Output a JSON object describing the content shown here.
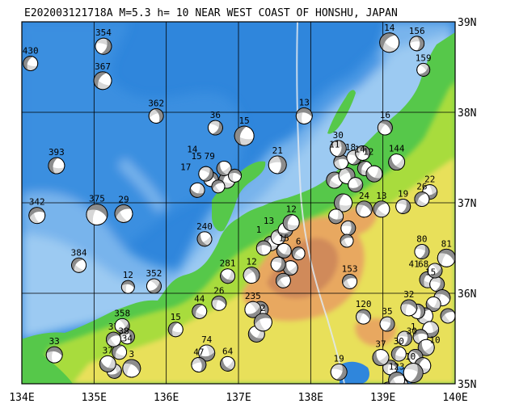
{
  "title": "E202003121718A M=5.3 h= 10 NEAR WEST COAST OF HONSHU, JAPAN",
  "colors": {
    "deep_sea": "#2f86dc",
    "mid_sea": "#4a98e4",
    "shallow_sea": "#78b4ec",
    "shelf": "#9ccaf2",
    "lowland": "#56c84a",
    "plain": "#a8dc3c",
    "hill": "#e8e05a",
    "mountain": "#e8a860",
    "high_mountain": "#d08a5a",
    "grid": "#000000",
    "compressional": "#8c8c8c",
    "dilatational": "#ffffff"
  },
  "x_ticks": [
    {
      "label": "134E",
      "value": 134
    },
    {
      "label": "135E",
      "value": 135
    },
    {
      "label": "136E",
      "value": 136
    },
    {
      "label": "137E",
      "value": 137
    },
    {
      "label": "138E",
      "value": 138
    },
    {
      "label": "139E",
      "value": 139
    },
    {
      "label": "140E",
      "value": 140
    }
  ],
  "y_ticks": [
    {
      "label": "39N",
      "value": 39
    },
    {
      "label": "38N",
      "value": 38
    },
    {
      "label": "37N",
      "value": 37
    },
    {
      "label": "36N",
      "value": 36
    },
    {
      "label": "35N",
      "value": 35
    }
  ],
  "extent": {
    "lon": [
      134,
      140
    ],
    "lat": [
      35,
      39
    ]
  },
  "focal_mechanisms": [
    {
      "label": "430",
      "lon": 134.12,
      "lat": 38.54,
      "r": 9,
      "rot": 20
    },
    {
      "label": "354",
      "lon": 135.13,
      "lat": 38.73,
      "r": 10,
      "rot": 200
    },
    {
      "label": "367",
      "lon": 135.12,
      "lat": 38.35,
      "r": 11,
      "rot": 30
    },
    {
      "label": "362",
      "lon": 135.86,
      "lat": 37.96,
      "r": 9,
      "rot": 160
    },
    {
      "label": "36",
      "lon": 136.68,
      "lat": 37.83,
      "r": 9,
      "rot": 210
    },
    {
      "label": "15",
      "lon": 137.08,
      "lat": 37.74,
      "r": 12,
      "rot": 15
    },
    {
      "label": "13",
      "lon": 137.91,
      "lat": 37.96,
      "r": 10,
      "rot": 100
    },
    {
      "label": "14",
      "lon": 139.09,
      "lat": 38.77,
      "r": 12,
      "rot": 40
    },
    {
      "label": "156",
      "lon": 139.47,
      "lat": 38.76,
      "r": 9,
      "rot": 180
    },
    {
      "label": "159",
      "lon": 139.56,
      "lat": 38.47,
      "r": 8,
      "rot": 230
    },
    {
      "label": "393",
      "lon": 134.48,
      "lat": 37.41,
      "r": 10,
      "rot": 10
    },
    {
      "label": "29",
      "lon": 135.41,
      "lat": 36.88,
      "r": 11,
      "rot": 60
    },
    {
      "label": "375",
      "lon": 135.04,
      "lat": 36.87,
      "r": 13,
      "rot": 110
    },
    {
      "label": "342",
      "lon": 134.21,
      "lat": 36.86,
      "r": 10,
      "rot": 70
    },
    {
      "label": "30",
      "lon": 138.38,
      "lat": 37.6,
      "r": 10,
      "rot": 190
    },
    {
      "label": "16",
      "lon": 139.03,
      "lat": 37.83,
      "r": 9,
      "rot": 130
    },
    {
      "label": "144",
      "lon": 139.19,
      "lat": 37.45,
      "r": 10,
      "rot": 320
    },
    {
      "label": "22",
      "lon": 139.65,
      "lat": 37.12,
      "r": 9,
      "rot": 260
    },
    {
      "label": "26",
      "lon": 139.54,
      "lat": 37.04,
      "r": 9,
      "rot": 40
    },
    {
      "label": "21",
      "lon": 137.54,
      "lat": 37.42,
      "r": 11,
      "rot": 180
    },
    {
      "label": "240",
      "lon": 136.53,
      "lat": 36.6,
      "r": 9,
      "rot": 330
    },
    {
      "label": "24",
      "lon": 138.74,
      "lat": 36.93,
      "r": 10,
      "rot": 120
    },
    {
      "label": "13",
      "lon": 138.98,
      "lat": 36.93,
      "r": 10,
      "rot": 45
    },
    {
      "label": "19",
      "lon": 139.28,
      "lat": 36.96,
      "r": 9,
      "rot": 200
    },
    {
      "label": "12",
      "lon": 137.73,
      "lat": 36.78,
      "r": 10,
      "rot": 15
    },
    {
      "label": "15",
      "lon": 137.63,
      "lat": 36.47,
      "r": 9,
      "rot": 300
    },
    {
      "label": "6",
      "lon": 137.83,
      "lat": 36.44,
      "r": 8,
      "rot": 40
    },
    {
      "label": "80",
      "lon": 139.54,
      "lat": 36.46,
      "r": 9,
      "rot": 200
    },
    {
      "label": "81",
      "lon": 139.88,
      "lat": 36.39,
      "r": 11,
      "rot": 120
    },
    {
      "label": "384",
      "lon": 134.79,
      "lat": 36.31,
      "r": 9,
      "rot": 40
    },
    {
      "label": "12",
      "lon": 135.47,
      "lat": 36.07,
      "r": 8,
      "rot": 100
    },
    {
      "label": "352",
      "lon": 135.83,
      "lat": 36.08,
      "r": 9,
      "rot": 230
    },
    {
      "label": "281",
      "lon": 136.85,
      "lat": 36.19,
      "r": 9,
      "rot": 300
    },
    {
      "label": "153",
      "lon": 138.54,
      "lat": 36.13,
      "r": 9,
      "rot": 70
    },
    {
      "label": "120",
      "lon": 138.73,
      "lat": 35.74,
      "r": 9,
      "rot": 120
    },
    {
      "label": "15",
      "lon": 136.13,
      "lat": 35.6,
      "r": 9,
      "rot": 20
    },
    {
      "label": "74",
      "lon": 136.56,
      "lat": 35.34,
      "r": 10,
      "rot": 260
    },
    {
      "label": "47",
      "lon": 136.45,
      "lat": 35.21,
      "r": 9,
      "rot": 170
    },
    {
      "label": "64",
      "lon": 136.85,
      "lat": 35.22,
      "r": 9,
      "rot": 320
    },
    {
      "label": "33",
      "lon": 134.45,
      "lat": 35.32,
      "r": 10,
      "rot": 100
    },
    {
      "label": "19",
      "lon": 138.39,
      "lat": 35.13,
      "r": 10,
      "rot": 200
    },
    {
      "label": "123",
      "lon": 139.19,
      "lat": 35.04,
      "r": 10,
      "rot": 60
    },
    {
      "label": "44",
      "lon": 136.46,
      "lat": 35.8,
      "r": 9,
      "rot": 30
    },
    {
      "label": "26",
      "lon": 136.73,
      "lat": 35.89,
      "r": 9,
      "rot": 110
    },
    {
      "label": "235",
      "lon": 137.2,
      "lat": 35.82,
      "r": 10,
      "rot": 240
    },
    {
      "label": "2",
      "lon": 137.34,
      "lat": 35.68,
      "r": 11,
      "rot": 70
    },
    {
      "label": "12",
      "lon": 137.18,
      "lat": 36.2,
      "r": 10,
      "rot": 150
    },
    {
      "label": "37",
      "lon": 138.97,
      "lat": 35.29,
      "r": 10,
      "rot": 330
    },
    {
      "label": "30",
      "lon": 139.22,
      "lat": 35.33,
      "r": 9,
      "rot": 20
    },
    {
      "label": "35",
      "lon": 139.06,
      "lat": 35.66,
      "r": 9,
      "rot": 200
    },
    {
      "label": "32",
      "lon": 139.36,
      "lat": 35.84,
      "r": 10,
      "rot": 110
    },
    {
      "label": "37",
      "lon": 135.27,
      "lat": 35.49,
      "r": 9,
      "rot": 60
    },
    {
      "label": "37",
      "lon": 135.19,
      "lat": 35.22,
      "r": 10,
      "rot": 300
    },
    {
      "label": "3",
      "lon": 135.52,
      "lat": 35.17,
      "r": 11,
      "rot": 120
    },
    {
      "label": "358",
      "lon": 135.39,
      "lat": 35.64,
      "r": 9,
      "rot": 240
    }
  ],
  "cluster_marks": [
    {
      "lon": 136.84,
      "lat": 37.25,
      "r": 10,
      "rot": 20
    },
    {
      "lon": 136.62,
      "lat": 37.26,
      "r": 9,
      "rot": 130
    },
    {
      "lon": 136.43,
      "lat": 37.14,
      "r": 9,
      "rot": 290
    },
    {
      "lon": 136.72,
      "lat": 37.18,
      "r": 8,
      "rot": 60
    },
    {
      "lon": 136.55,
      "lat": 37.32,
      "r": 9,
      "rot": 210
    },
    {
      "lon": 136.8,
      "lat": 37.38,
      "r": 9,
      "rot": 330
    },
    {
      "lon": 136.95,
      "lat": 37.3,
      "r": 8,
      "rot": 100
    },
    {
      "lon": 138.33,
      "lat": 37.25,
      "r": 10,
      "rot": 40
    },
    {
      "lon": 138.5,
      "lat": 37.3,
      "r": 10,
      "rot": 160
    },
    {
      "lon": 138.62,
      "lat": 37.2,
      "r": 9,
      "rot": 250
    },
    {
      "lon": 138.75,
      "lat": 37.38,
      "r": 9,
      "rot": 20
    },
    {
      "lon": 138.88,
      "lat": 37.32,
      "r": 10,
      "rot": 300
    },
    {
      "lon": 138.42,
      "lat": 37.45,
      "r": 9,
      "rot": 80
    },
    {
      "lon": 138.6,
      "lat": 37.5,
      "r": 9,
      "rot": 200
    },
    {
      "lon": 138.72,
      "lat": 37.55,
      "r": 9,
      "rot": 130
    },
    {
      "lon": 138.45,
      "lat": 37.0,
      "r": 11,
      "rot": 10
    },
    {
      "lon": 138.35,
      "lat": 36.85,
      "r": 9,
      "rot": 280
    },
    {
      "lon": 138.52,
      "lat": 36.72,
      "r": 9,
      "rot": 190
    },
    {
      "lon": 138.5,
      "lat": 36.58,
      "r": 8,
      "rot": 70
    },
    {
      "lon": 137.45,
      "lat": 36.55,
      "r": 9,
      "rot": 10
    },
    {
      "lon": 137.55,
      "lat": 36.62,
      "r": 9,
      "rot": 140
    },
    {
      "lon": 137.65,
      "lat": 36.7,
      "r": 9,
      "rot": 260
    },
    {
      "lon": 137.35,
      "lat": 36.5,
      "r": 9,
      "rot": 90
    },
    {
      "lon": 137.72,
      "lat": 36.28,
      "r": 9,
      "rot": 330
    },
    {
      "lon": 137.55,
      "lat": 36.32,
      "r": 9,
      "rot": 200
    },
    {
      "lon": 137.62,
      "lat": 36.14,
      "r": 9,
      "rot": 60
    },
    {
      "lon": 137.3,
      "lat": 35.82,
      "r": 10,
      "rot": 140
    },
    {
      "lon": 137.25,
      "lat": 35.55,
      "r": 10,
      "rot": 300
    },
    {
      "lon": 135.35,
      "lat": 35.35,
      "r": 9,
      "rot": 30
    },
    {
      "lon": 135.46,
      "lat": 35.52,
      "r": 9,
      "rot": 160
    },
    {
      "lon": 135.28,
      "lat": 35.14,
      "r": 9,
      "rot": 250
    },
    {
      "lon": 139.62,
      "lat": 36.15,
      "r": 10,
      "rot": 20
    },
    {
      "lon": 139.75,
      "lat": 36.1,
      "r": 9,
      "rot": 200
    },
    {
      "lon": 139.82,
      "lat": 35.95,
      "r": 10,
      "rot": 110
    },
    {
      "lon": 139.7,
      "lat": 35.88,
      "r": 9,
      "rot": 300
    },
    {
      "lon": 139.58,
      "lat": 35.75,
      "r": 10,
      "rot": 40
    },
    {
      "lon": 139.48,
      "lat": 35.8,
      "r": 9,
      "rot": 170
    },
    {
      "lon": 139.66,
      "lat": 35.6,
      "r": 10,
      "rot": 260
    },
    {
      "lon": 139.52,
      "lat": 35.52,
      "r": 9,
      "rot": 80
    },
    {
      "lon": 139.6,
      "lat": 35.4,
      "r": 10,
      "rot": 330
    },
    {
      "lon": 139.45,
      "lat": 35.3,
      "r": 9,
      "rot": 140
    },
    {
      "lon": 139.55,
      "lat": 35.2,
      "r": 10,
      "rot": 20
    },
    {
      "lon": 139.42,
      "lat": 35.12,
      "r": 12,
      "rot": 200
    },
    {
      "lon": 139.9,
      "lat": 35.75,
      "r": 9,
      "rot": 60
    },
    {
      "lon": 139.72,
      "lat": 36.25,
      "r": 9,
      "rot": 240
    },
    {
      "lon": 139.1,
      "lat": 35.18,
      "r": 9,
      "rot": 100
    },
    {
      "lon": 139.25,
      "lat": 34.98,
      "r": 9,
      "rot": 290
    },
    {
      "lon": 139.08,
      "lat": 34.93,
      "r": 10,
      "rot": 30
    },
    {
      "lon": 139.3,
      "lat": 35.5,
      "r": 9,
      "rot": 190
    }
  ],
  "cluster_labels": [
    {
      "text": "11",
      "lon": 138.33,
      "lat": 37.61
    },
    {
      "text": "18",
      "lon": 138.55,
      "lat": 37.58
    },
    {
      "text": "14",
      "lon": 138.68,
      "lat": 37.56
    },
    {
      "text": "12",
      "lon": 138.8,
      "lat": 37.53
    },
    {
      "text": "14",
      "lon": 136.36,
      "lat": 37.56
    },
    {
      "text": "79",
      "lon": 136.6,
      "lat": 37.48
    },
    {
      "text": "15",
      "lon": 136.42,
      "lat": 37.48
    },
    {
      "text": "17",
      "lon": 136.27,
      "lat": 37.36
    },
    {
      "text": "13",
      "lon": 137.42,
      "lat": 36.77
    },
    {
      "text": "1",
      "lon": 137.28,
      "lat": 36.67
    },
    {
      "text": "41",
      "lon": 139.43,
      "lat": 36.29
    },
    {
      "text": "68",
      "lon": 139.56,
      "lat": 36.29
    },
    {
      "text": "15",
      "lon": 139.66,
      "lat": 36.2
    },
    {
      "text": "38",
      "lon": 135.41,
      "lat": 35.55
    },
    {
      "text": "34",
      "lon": 135.46,
      "lat": 35.47
    },
    {
      "text": "30",
      "lon": 139.4,
      "lat": 35.55
    },
    {
      "text": "10",
      "lon": 139.38,
      "lat": 35.27
    },
    {
      "text": "10",
      "lon": 139.72,
      "lat": 35.45
    },
    {
      "text": "1",
      "lon": 139.42,
      "lat": 35.6
    }
  ]
}
